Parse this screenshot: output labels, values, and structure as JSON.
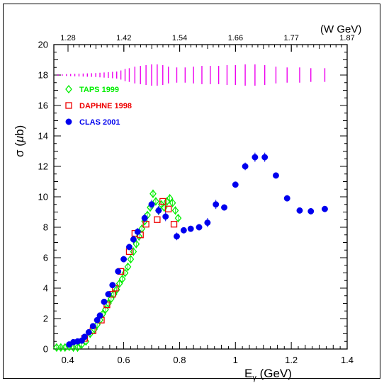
{
  "chart_data": {
    "type": "scatter",
    "xlabel_main": "E",
    "xlabel_sub": "γ",
    "xlabel_unit": " (GeV)",
    "ylabel_prefix": "σ (",
    "ylabel_mu": "μ",
    "ylabel_suffix": "b)",
    "top_axis_label": "(W GeV)",
    "xlim": [
      0.35,
      1.4
    ],
    "ylim": [
      0,
      20
    ],
    "x_ticks": [
      "0.4",
      "0.6",
      "0.8",
      "1",
      "1.2",
      "1.4"
    ],
    "y_ticks": [
      "0",
      "2",
      "4",
      "6",
      "8",
      "10",
      "12",
      "14",
      "16",
      "18",
      "20"
    ],
    "top_ticks": [
      "1.28",
      "1.42",
      "1.54",
      "1.66",
      "1.77",
      "1.87"
    ],
    "grid": false,
    "legend_position": "top-left",
    "series": [
      {
        "name": "TAPS 1999",
        "marker": "diamond-open",
        "color": "#00ee00",
        "points": [
          [
            0.36,
            0.1
          ],
          [
            0.375,
            0.1
          ],
          [
            0.39,
            0.1
          ],
          [
            0.405,
            0.15
          ],
          [
            0.42,
            0.1
          ],
          [
            0.435,
            0.1
          ],
          [
            0.45,
            0.3
          ],
          [
            0.465,
            0.5
          ],
          [
            0.48,
            1.0
          ],
          [
            0.495,
            1.3
          ],
          [
            0.505,
            1.6
          ],
          [
            0.515,
            1.9
          ],
          [
            0.525,
            2.3
          ],
          [
            0.535,
            2.6
          ],
          [
            0.545,
            3.0
          ],
          [
            0.555,
            3.3
          ],
          [
            0.565,
            3.6
          ],
          [
            0.575,
            3.9
          ],
          [
            0.585,
            4.3
          ],
          [
            0.595,
            4.6
          ],
          [
            0.605,
            5.0
          ],
          [
            0.615,
            5.4
          ],
          [
            0.625,
            5.9
          ],
          [
            0.635,
            6.4
          ],
          [
            0.645,
            6.9
          ],
          [
            0.655,
            7.4
          ],
          [
            0.665,
            7.9
          ],
          [
            0.675,
            8.4
          ],
          [
            0.685,
            8.8
          ],
          [
            0.695,
            9.3
          ],
          [
            0.705,
            10.2
          ],
          [
            0.715,
            9.7
          ],
          [
            0.725,
            9.1
          ],
          [
            0.735,
            9.5
          ],
          [
            0.745,
            9.3
          ],
          [
            0.755,
            9.7
          ],
          [
            0.765,
            9.9
          ],
          [
            0.775,
            9.6
          ],
          [
            0.785,
            9.1
          ],
          [
            0.795,
            8.6
          ]
        ]
      },
      {
        "name": "DAPHNE 1998",
        "marker": "square-open",
        "color": "#ee0000",
        "points": [
          [
            0.46,
            0.7
          ],
          [
            0.49,
            1.2
          ],
          [
            0.52,
            1.9
          ],
          [
            0.54,
            2.9
          ],
          [
            0.56,
            3.6
          ],
          [
            0.57,
            4.0
          ],
          [
            0.59,
            5.1
          ],
          [
            0.62,
            6.4
          ],
          [
            0.64,
            7.6
          ],
          [
            0.66,
            7.5
          ],
          [
            0.68,
            8.2
          ],
          [
            0.72,
            8.5
          ],
          [
            0.74,
            9.7
          ],
          [
            0.76,
            9.2
          ],
          [
            0.78,
            8.2
          ]
        ]
      },
      {
        "name": "CLAS 2001",
        "marker": "circle-filled",
        "color": "#0000ee",
        "points": [
          [
            0.405,
            0.3
          ],
          [
            0.42,
            0.45
          ],
          [
            0.435,
            0.5
          ],
          [
            0.45,
            0.55
          ],
          [
            0.46,
            0.8
          ],
          [
            0.475,
            1.1
          ],
          [
            0.49,
            1.5
          ],
          [
            0.505,
            1.9
          ],
          [
            0.515,
            2.2
          ],
          [
            0.53,
            3.1
          ],
          [
            0.545,
            3.6
          ],
          [
            0.56,
            4.2
          ],
          [
            0.58,
            5.1
          ],
          [
            0.6,
            5.9
          ],
          [
            0.62,
            6.7
          ],
          [
            0.635,
            7.2
          ],
          [
            0.65,
            7.7
          ],
          [
            0.675,
            8.6
          ],
          [
            0.7,
            9.5
          ],
          [
            0.725,
            9.1
          ],
          [
            0.75,
            8.7
          ],
          [
            0.79,
            7.4
          ],
          [
            0.815,
            7.8
          ],
          [
            0.84,
            7.9
          ],
          [
            0.87,
            8.0
          ],
          [
            0.9,
            8.3
          ],
          [
            0.93,
            9.5
          ],
          [
            0.96,
            9.3
          ],
          [
            1.0,
            10.8
          ],
          [
            1.035,
            12.0
          ],
          [
            1.07,
            12.6
          ],
          [
            1.105,
            12.6
          ],
          [
            1.145,
            11.4
          ],
          [
            1.185,
            9.9
          ],
          [
            1.23,
            9.1
          ],
          [
            1.27,
            9.05
          ],
          [
            1.32,
            9.2
          ]
        ],
        "yerr": [
          0.1,
          0.1,
          0.1,
          0.1,
          0.1,
          0.1,
          0.1,
          0.1,
          0.1,
          0.15,
          0.15,
          0.2,
          0.2,
          0.2,
          0.2,
          0.25,
          0.25,
          0.3,
          0.3,
          0.3,
          0.3,
          0.25,
          0.2,
          0.2,
          0.2,
          0.3,
          0.3,
          0.2,
          0.2,
          0.25,
          0.3,
          0.3,
          0.2,
          0.2,
          0.2,
          0.2,
          0.2
        ]
      }
    ],
    "systematic_band": {
      "color": "#ee00ee",
      "center": 18.0,
      "x": [
        0.365,
        0.38,
        0.395,
        0.41,
        0.425,
        0.44,
        0.455,
        0.47,
        0.485,
        0.5,
        0.515,
        0.53,
        0.545,
        0.56,
        0.575,
        0.59,
        0.605,
        0.62,
        0.64,
        0.66,
        0.68,
        0.7,
        0.72,
        0.74,
        0.76,
        0.79,
        0.82,
        0.85,
        0.88,
        0.91,
        0.94,
        0.97,
        1.0,
        1.035,
        1.07,
        1.105,
        1.145,
        1.185,
        1.23,
        1.27,
        1.32
      ],
      "halfheight": [
        0.05,
        0.05,
        0.06,
        0.07,
        0.08,
        0.09,
        0.1,
        0.11,
        0.12,
        0.13,
        0.15,
        0.17,
        0.19,
        0.21,
        0.23,
        0.3,
        0.4,
        0.45,
        0.55,
        0.6,
        0.65,
        0.7,
        0.7,
        0.65,
        0.55,
        0.5,
        0.5,
        0.55,
        0.6,
        0.6,
        0.6,
        0.65,
        0.65,
        0.7,
        0.7,
        0.65,
        0.55,
        0.5,
        0.5,
        0.45,
        0.45
      ]
    }
  }
}
